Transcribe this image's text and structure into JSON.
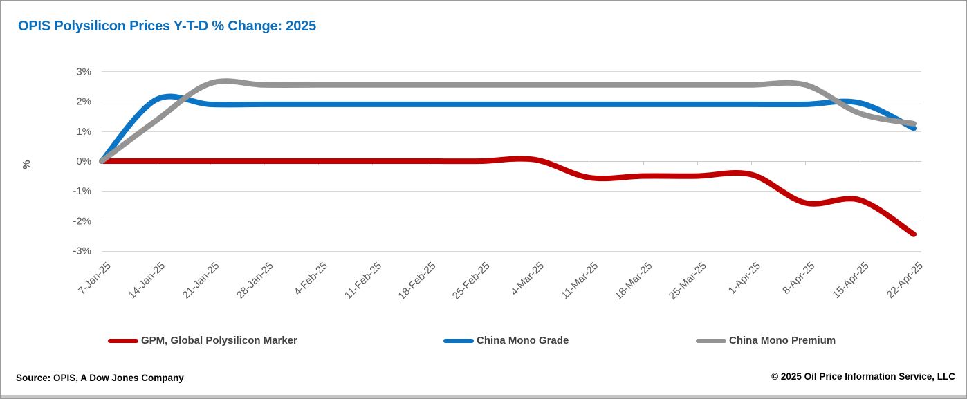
{
  "header": {
    "title": "OPIS Polysilicon Prices Y-T-D % Change: 2025"
  },
  "colors": {
    "title": "#0a6ebd",
    "grid": "#d9d9d9",
    "zero_line": "#c9c9c9",
    "tick": "#c9c9c9",
    "axis_text": "#595959"
  },
  "chart_data": {
    "type": "line",
    "title": "OPIS Polysilicon Prices Y-T-D % Change: 2025",
    "xlabel": "",
    "ylabel": "%",
    "ylim": [
      -3,
      3
    ],
    "ytick_values": [
      3,
      2,
      1,
      0,
      -1,
      -2,
      -3
    ],
    "ytick_labels": [
      "3%",
      "2%",
      "1%",
      "0%",
      "-1%",
      "-2%",
      "-3%"
    ],
    "grid": true,
    "smooth": true,
    "legend_position": "bottom",
    "categories": [
      "7-Jan-25",
      "14-Jan-25",
      "21-Jan-25",
      "28-Jan-25",
      "4-Feb-25",
      "11-Feb-25",
      "18-Feb-25",
      "25-Feb-25",
      "4-Mar-25",
      "11-Mar-25",
      "18-Mar-25",
      "25-Mar-25",
      "1-Apr-25",
      "8-Apr-25",
      "15-Apr-25",
      "22-Apr-25"
    ],
    "series": [
      {
        "name": "GPM, Global Polysilicon Marker",
        "color": "#c00000",
        "values": [
          0,
          0,
          0,
          0,
          0,
          0,
          0,
          0,
          0.05,
          -0.55,
          -0.5,
          -0.5,
          -0.45,
          -1.4,
          -1.3,
          -2.45
        ]
      },
      {
        "name": "China Mono Grade",
        "color": "#0b74c4",
        "values": [
          0,
          2.05,
          1.9,
          1.9,
          1.9,
          1.9,
          1.9,
          1.9,
          1.9,
          1.9,
          1.9,
          1.9,
          1.9,
          1.9,
          1.95,
          1.1
        ]
      },
      {
        "name": "China Mono Premium",
        "color": "#949494",
        "values": [
          0,
          1.35,
          2.6,
          2.55,
          2.55,
          2.55,
          2.55,
          2.55,
          2.55,
          2.55,
          2.55,
          2.55,
          2.55,
          2.55,
          1.6,
          1.25
        ]
      }
    ]
  },
  "footer": {
    "source": "Source: OPIS, A Dow Jones Company",
    "copyright": "© 2025 Oil Price Information Service, LLC"
  }
}
